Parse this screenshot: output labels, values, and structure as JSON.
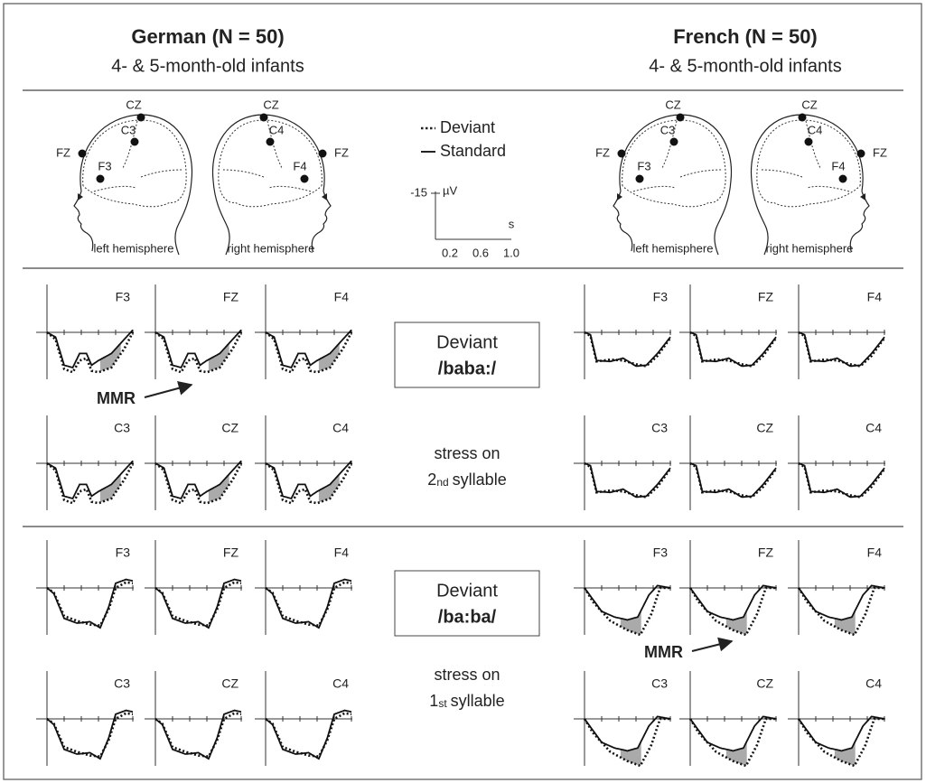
{
  "header": {
    "left": {
      "title": "German (N = 50)",
      "subtitle": "4- & 5-month-old infants"
    },
    "right": {
      "title": "French (N = 50)",
      "subtitle": "4- & 5-month-old infants"
    }
  },
  "legend": {
    "deviant": "Deviant",
    "standard": "Standard"
  },
  "scale": {
    "y_value": "-15",
    "y_unit": "µV",
    "x_unit": "s",
    "x_ticks": [
      "0.2",
      "0.6",
      "1.0"
    ]
  },
  "heads": [
    {
      "label": "left hemisphere",
      "electrodes": [
        "CZ",
        "C3",
        "FZ",
        "F3"
      ]
    },
    {
      "label": "right hemisphere",
      "electrodes": [
        "CZ",
        "C4",
        "FZ",
        "F4"
      ]
    },
    {
      "label": "left hemisphere",
      "electrodes": [
        "CZ",
        "C3",
        "FZ",
        "F3"
      ]
    },
    {
      "label": "right hemisphere",
      "electrodes": [
        "CZ",
        "C4",
        "FZ",
        "F4"
      ]
    }
  ],
  "conditions": [
    {
      "label": "Deviant",
      "stimulus": "/baba:/",
      "stress_line": "stress on",
      "ordinal": "2",
      "suffix": "nd",
      "word": "syllable"
    },
    {
      "label": "Deviant",
      "stimulus": "/ba:ba/",
      "stress_line": "stress on",
      "ordinal": "1",
      "suffix": "st",
      "word": "syllable"
    }
  ],
  "blocks": [
    {
      "electrodes": [
        "F3",
        "FZ",
        "F4",
        "C3",
        "CZ",
        "C4"
      ]
    },
    {
      "electrodes": [
        "F3",
        "FZ",
        "F4",
        "C3",
        "CZ",
        "C4"
      ]
    },
    {
      "electrodes": [
        "F3",
        "FZ",
        "F4",
        "C3",
        "CZ",
        "C4"
      ]
    },
    {
      "electrodes": [
        "F3",
        "FZ",
        "F4",
        "C3",
        "CZ",
        "C4"
      ]
    }
  ],
  "annotations": [
    "MMR",
    "MMR"
  ]
}
